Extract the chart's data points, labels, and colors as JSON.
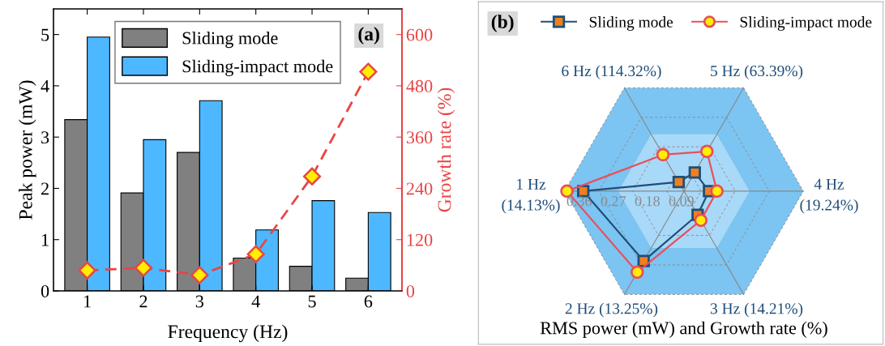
{
  "chart_data": [
    {
      "type": "bar",
      "categories": [
        "1",
        "2",
        "3",
        "4",
        "5",
        "6"
      ],
      "xlabel": "Frequency (Hz)",
      "ylabel": "Peak power (mW)",
      "y2label": "Growth rate (%)",
      "series": [
        {
          "name": "Sliding mode",
          "color": "#808080",
          "values": [
            3.34,
            1.91,
            2.7,
            0.64,
            0.48,
            0.25
          ]
        },
        {
          "name": "Sliding-impact mode",
          "color": "#4db8ff",
          "values": [
            4.95,
            2.95,
            3.71,
            1.19,
            1.76,
            1.53
          ]
        },
        {
          "type": "line",
          "axis": "y2",
          "color": "#e84545",
          "marker": "diamond",
          "line_style": "dashed",
          "values": [
            48,
            54,
            37,
            86,
            268,
            513
          ]
        }
      ],
      "ylim": [
        0,
        5.5
      ],
      "yticks": [
        0,
        1,
        2,
        3,
        4,
        5
      ],
      "y2lim": [
        0,
        660
      ],
      "y2ticks": [
        0,
        120,
        240,
        360,
        480,
        600
      ],
      "legend": "top",
      "annotations": [
        "(a)"
      ]
    },
    {
      "type": "radar",
      "categories": [
        "5 Hz (63.39%)",
        "4 Hz\n(19.24%)",
        "3 Hz (14.21%)",
        "2 Hz (13.25%)",
        "1 Hz\n(14.13%)",
        "6 Hz (114.32%)"
      ],
      "series": [
        {
          "name": "Sliding mode",
          "color": "#1f4e79",
          "marker": "square",
          "values": [
            0.102,
            0.111,
            0.117,
            0.258,
            0.311,
            0.073
          ]
        },
        {
          "name": "Sliding-impact mode",
          "color": "#e8505b",
          "marker": "circle",
          "values": [
            0.166,
            0.132,
            0.134,
            0.292,
            0.354,
            0.156
          ]
        }
      ],
      "ylim": [
        0.045,
        0.36
      ],
      "yticks": [
        0.09,
        0.18,
        0.27,
        0.36
      ],
      "grid": true,
      "legend": "top",
      "xlabel": "RMS power (mW) and Growth rate (%)",
      "annotations": [
        "(b)"
      ]
    }
  ]
}
